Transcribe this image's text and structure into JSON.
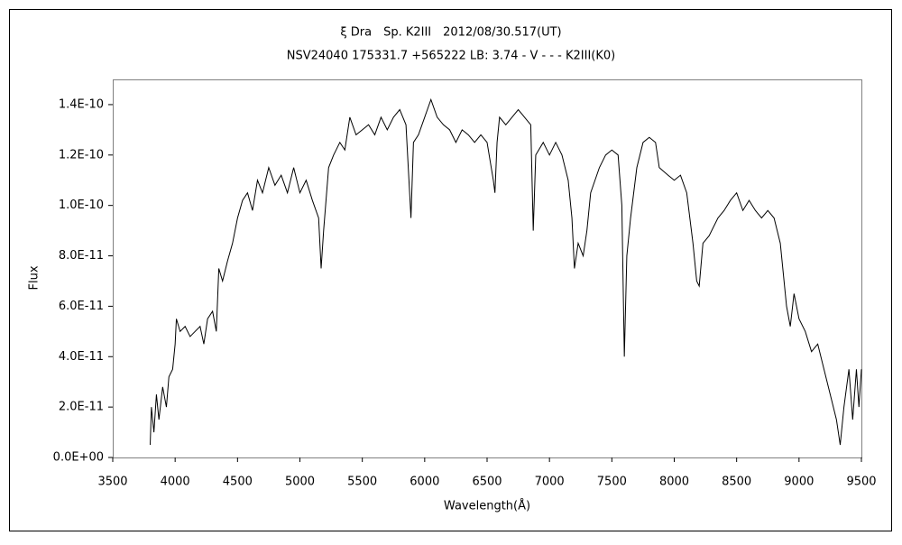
{
  "chart_data": {
    "type": "line",
    "title": "ξ Dra　Sp. K2III　2012/08/30.517(UT)",
    "subtitle": "NSV24040 175331.7 +565222 LB: 3.74 - V - - - K2III(K0)",
    "x_label": "Wavelength(Å)",
    "y_label": "Flux",
    "color": "#000000",
    "xlim": [
      3500,
      9500
    ],
    "xticks": [
      3500,
      4000,
      4500,
      5000,
      5500,
      6000,
      6500,
      7000,
      7500,
      8000,
      8500,
      9000,
      9500
    ],
    "ylim": [
      0,
      1.5e-10
    ],
    "yticks": [
      {
        "value": 0,
        "label": "0.0E+00"
      },
      {
        "value": 2e-11,
        "label": "2.0E-11"
      },
      {
        "value": 4e-11,
        "label": "4.0E-11"
      },
      {
        "value": 6e-11,
        "label": "6.0E-11"
      },
      {
        "value": 8e-11,
        "label": "8.0E-11"
      },
      {
        "value": 1e-10,
        "label": "1.0E-10"
      },
      {
        "value": 1.2e-10,
        "label": "1.2E-10"
      },
      {
        "value": 1.4e-10,
        "label": "1.4E-10"
      }
    ],
    "x": [
      3800,
      3810,
      3830,
      3850,
      3870,
      3900,
      3930,
      3950,
      3980,
      4000,
      4010,
      4040,
      4080,
      4120,
      4160,
      4200,
      4230,
      4260,
      4300,
      4330,
      4350,
      4380,
      4420,
      4460,
      4500,
      4540,
      4580,
      4620,
      4660,
      4700,
      4750,
      4800,
      4850,
      4900,
      4950,
      5000,
      5050,
      5100,
      5150,
      5170,
      5190,
      5230,
      5270,
      5320,
      5360,
      5400,
      5450,
      5500,
      5550,
      5600,
      5650,
      5700,
      5750,
      5800,
      5850,
      5890,
      5910,
      5950,
      6000,
      6050,
      6100,
      6150,
      6200,
      6250,
      6300,
      6350,
      6400,
      6450,
      6500,
      6550,
      6563,
      6580,
      6600,
      6650,
      6700,
      6750,
      6800,
      6850,
      6870,
      6890,
      6950,
      7000,
      7050,
      7100,
      7150,
      7180,
      7200,
      7230,
      7270,
      7300,
      7330,
      7400,
      7450,
      7500,
      7550,
      7580,
      7600,
      7620,
      7650,
      7700,
      7750,
      7800,
      7850,
      7880,
      7950,
      8000,
      8050,
      8100,
      8150,
      8180,
      8200,
      8230,
      8280,
      8350,
      8400,
      8450,
      8500,
      8550,
      8600,
      8650,
      8700,
      8750,
      8800,
      8850,
      8900,
      8930,
      8960,
      9000,
      9050,
      9100,
      9150,
      9200,
      9250,
      9300,
      9330,
      9360,
      9400,
      9430,
      9460,
      9480,
      9500
    ],
    "values": [
      5e-12,
      2e-11,
      1e-11,
      2.5e-11,
      1.5e-11,
      2.8e-11,
      2e-11,
      3.2e-11,
      3.5e-11,
      4.5e-11,
      5.5e-11,
      5e-11,
      5.2e-11,
      4.8e-11,
      5e-11,
      5.2e-11,
      4.5e-11,
      5.5e-11,
      5.8e-11,
      5e-11,
      7.5e-11,
      7e-11,
      7.8e-11,
      8.5e-11,
      9.5e-11,
      1.02e-10,
      1.05e-10,
      9.8e-11,
      1.1e-10,
      1.05e-10,
      1.15e-10,
      1.08e-10,
      1.12e-10,
      1.05e-10,
      1.15e-10,
      1.05e-10,
      1.1e-10,
      1.02e-10,
      9.5e-11,
      7.5e-11,
      9e-11,
      1.15e-10,
      1.2e-10,
      1.25e-10,
      1.22e-10,
      1.35e-10,
      1.28e-10,
      1.3e-10,
      1.32e-10,
      1.28e-10,
      1.35e-10,
      1.3e-10,
      1.35e-10,
      1.38e-10,
      1.32e-10,
      9.5e-11,
      1.25e-10,
      1.28e-10,
      1.35e-10,
      1.42e-10,
      1.35e-10,
      1.32e-10,
      1.3e-10,
      1.25e-10,
      1.3e-10,
      1.28e-10,
      1.25e-10,
      1.28e-10,
      1.25e-10,
      1.1e-10,
      1.05e-10,
      1.25e-10,
      1.35e-10,
      1.32e-10,
      1.35e-10,
      1.38e-10,
      1.35e-10,
      1.32e-10,
      9e-11,
      1.2e-10,
      1.25e-10,
      1.2e-10,
      1.25e-10,
      1.2e-10,
      1.1e-10,
      9.5e-11,
      7.5e-11,
      8.5e-11,
      8e-11,
      9e-11,
      1.05e-10,
      1.15e-10,
      1.2e-10,
      1.22e-10,
      1.2e-10,
      1e-10,
      4e-11,
      8e-11,
      9.5e-11,
      1.15e-10,
      1.25e-10,
      1.27e-10,
      1.25e-10,
      1.15e-10,
      1.12e-10,
      1.1e-10,
      1.12e-10,
      1.05e-10,
      8.5e-11,
      7e-11,
      6.8e-11,
      8.5e-11,
      8.8e-11,
      9.5e-11,
      9.8e-11,
      1.02e-10,
      1.05e-10,
      9.8e-11,
      1.02e-10,
      9.8e-11,
      9.5e-11,
      9.8e-11,
      9.5e-11,
      8.5e-11,
      6e-11,
      5.2e-11,
      6.5e-11,
      5.5e-11,
      5e-11,
      4.2e-11,
      4.5e-11,
      3.5e-11,
      2.5e-11,
      1.5e-11,
      5e-12,
      2e-11,
      3.5e-11,
      1.5e-11,
      3.5e-11,
      2e-11,
      3.5e-11
    ]
  }
}
